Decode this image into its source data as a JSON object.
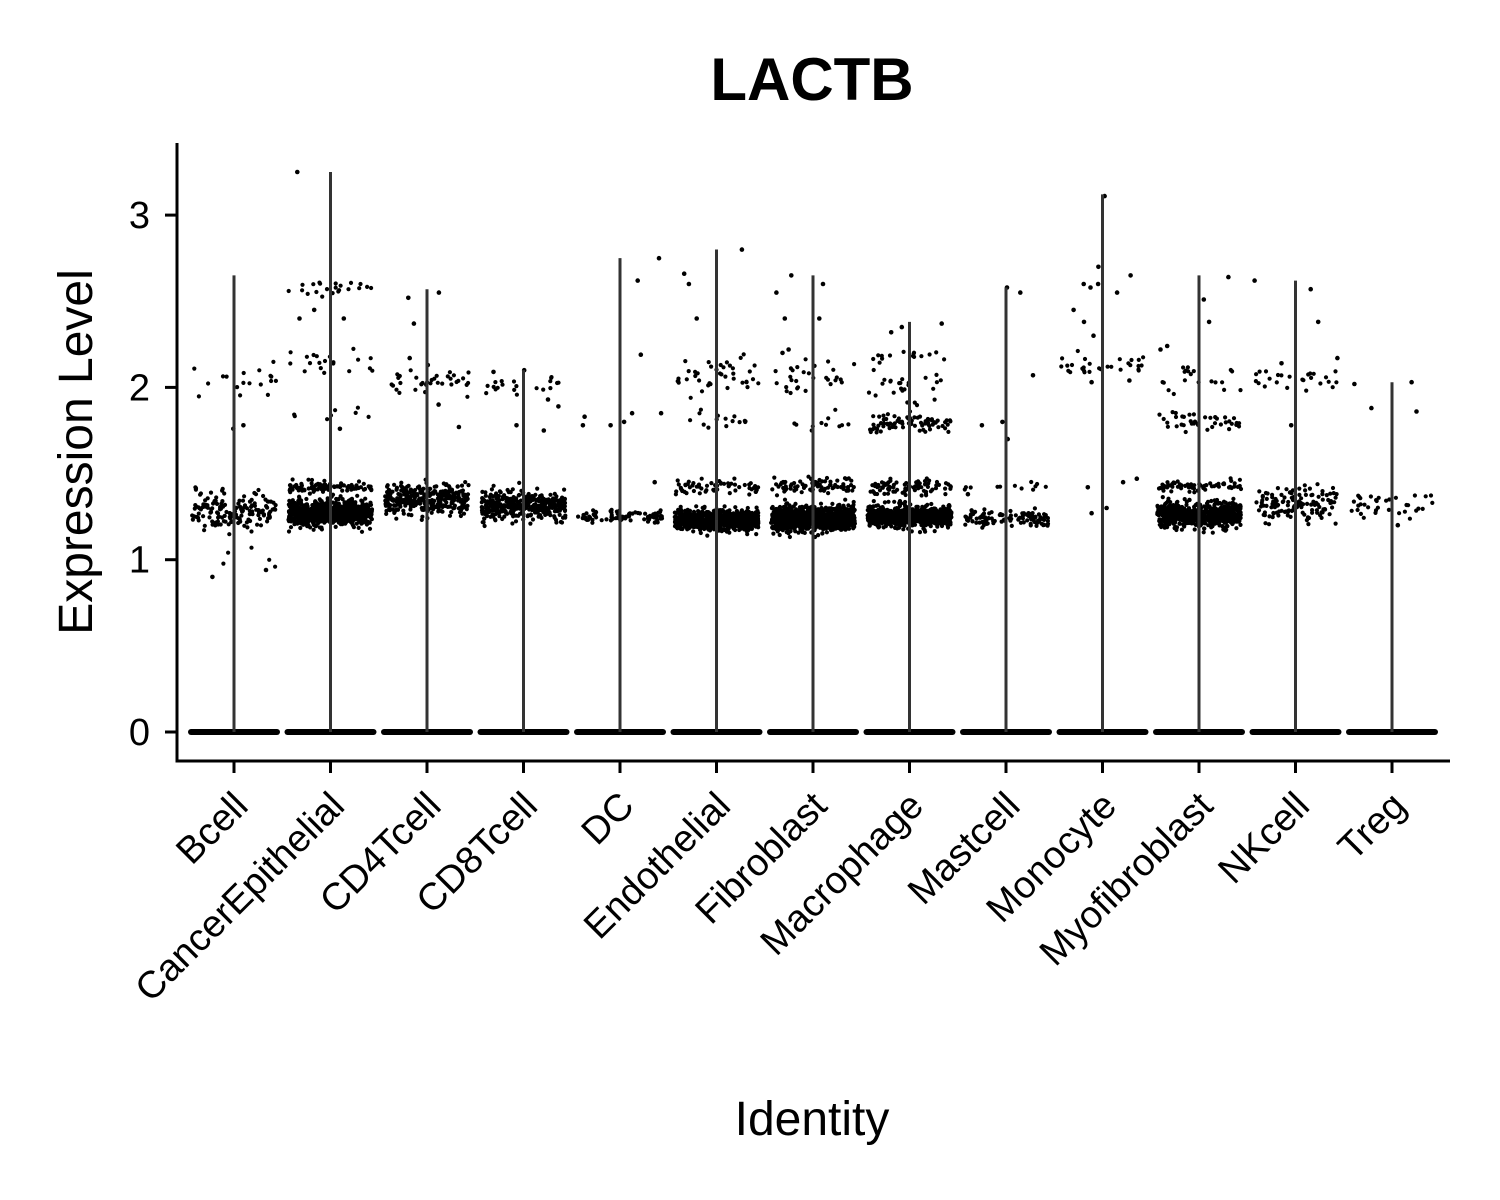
{
  "chart_data": {
    "type": "scatter",
    "subtype": "violin-jitter",
    "title": "LACTB",
    "xlabel": "Identity",
    "ylabel": "Expression Level",
    "ylim": [
      -0.15,
      3.42
    ],
    "yticks": [
      0,
      1,
      2,
      3
    ],
    "grid": false,
    "legend": "none",
    "colors": {
      "points": "#000000",
      "violin": "#333333",
      "axis": "#000000"
    },
    "categories": [
      "Bcell",
      "CancerEpithelial",
      "CD4Tcell",
      "CD8Tcell",
      "DC",
      "Endothelial",
      "Fibroblast",
      "Macrophage",
      "Mastcell",
      "Monocyte",
      "Myofibroblast",
      "NKcell",
      "Treg"
    ],
    "series": [
      {
        "category": "Bcell",
        "max": 2.65,
        "clusters": [
          {
            "center": 1.28,
            "spread": 0.09,
            "count": 150
          },
          {
            "center": 2.05,
            "spread": 0.12,
            "count": 18
          },
          {
            "center": 1.0,
            "spread": 0.06,
            "count": 5
          }
        ],
        "outliers": [
          0.9,
          0.94,
          1.76,
          1.78
        ]
      },
      {
        "category": "CancerEpithelial",
        "max": 3.25,
        "clusters": [
          {
            "center": 1.27,
            "spread": 0.06,
            "count": 800
          },
          {
            "center": 1.42,
            "spread": 0.03,
            "count": 90
          },
          {
            "center": 2.15,
            "spread": 0.06,
            "count": 20
          },
          {
            "center": 2.58,
            "spread": 0.04,
            "count": 22
          },
          {
            "center": 1.85,
            "spread": 0.06,
            "count": 8
          }
        ],
        "outliers": [
          2.4,
          2.4,
          3.25,
          1.76,
          2.45
        ]
      },
      {
        "category": "CD4Tcell",
        "max": 2.57,
        "clusters": [
          {
            "center": 1.35,
            "spread": 0.07,
            "count": 330
          },
          {
            "center": 2.03,
            "spread": 0.05,
            "count": 35
          }
        ],
        "outliers": [
          2.52,
          2.37,
          2.55,
          1.77,
          2.17,
          1.9,
          2.13
        ]
      },
      {
        "category": "CD8Tcell",
        "max": 2.1,
        "clusters": [
          {
            "center": 1.32,
            "spread": 0.07,
            "count": 380
          },
          {
            "center": 2.02,
            "spread": 0.04,
            "count": 20
          }
        ],
        "outliers": [
          1.75,
          1.89,
          1.93,
          2.09,
          2.1,
          1.78
        ]
      },
      {
        "category": "DC",
        "max": 2.75,
        "clusters": [
          {
            "center": 1.25,
            "spread": 0.03,
            "count": 90
          }
        ],
        "outliers": [
          1.8,
          1.85,
          1.78,
          1.78,
          2.19,
          2.62,
          2.75,
          1.45,
          1.83,
          1.85
        ]
      },
      {
        "category": "Endothelial",
        "max": 2.8,
        "clusters": [
          {
            "center": 1.23,
            "spread": 0.05,
            "count": 700
          },
          {
            "center": 1.42,
            "spread": 0.03,
            "count": 60
          },
          {
            "center": 2.05,
            "spread": 0.1,
            "count": 40
          },
          {
            "center": 1.8,
            "spread": 0.04,
            "count": 15
          }
        ],
        "outliers": [
          2.4,
          2.6,
          2.66,
          2.8
        ]
      },
      {
        "category": "Fibroblast",
        "max": 2.65,
        "clusters": [
          {
            "center": 1.24,
            "spread": 0.06,
            "count": 1000
          },
          {
            "center": 1.43,
            "spread": 0.04,
            "count": 80
          },
          {
            "center": 2.05,
            "spread": 0.1,
            "count": 30
          },
          {
            "center": 1.78,
            "spread": 0.03,
            "count": 10
          }
        ],
        "outliers": [
          2.55,
          2.6,
          2.65,
          2.4,
          2.4,
          2.22,
          2.2
        ]
      },
      {
        "category": "Macrophage",
        "max": 2.38,
        "clusters": [
          {
            "center": 1.25,
            "spread": 0.05,
            "count": 700
          },
          {
            "center": 1.42,
            "spread": 0.04,
            "count": 80
          },
          {
            "center": 1.79,
            "spread": 0.04,
            "count": 80
          },
          {
            "center": 2.0,
            "spread": 0.08,
            "count": 25
          },
          {
            "center": 2.18,
            "spread": 0.04,
            "count": 15
          }
        ],
        "outliers": [
          2.37,
          2.35,
          2.32
        ]
      },
      {
        "category": "Mastcell",
        "max": 2.58,
        "clusters": [
          {
            "center": 1.24,
            "spread": 0.04,
            "count": 110
          },
          {
            "center": 1.42,
            "spread": 0.02,
            "count": 12
          }
        ],
        "outliers": [
          1.7,
          2.07,
          1.8,
          1.78,
          2.55,
          2.58,
          1.38
        ]
      },
      {
        "category": "Monocyte",
        "max": 3.12,
        "clusters": [
          {
            "center": 2.13,
            "spread": 0.05,
            "count": 30
          }
        ],
        "outliers": [
          1.45,
          1.42,
          1.47,
          1.27,
          1.3,
          2.03,
          2.04,
          2.38,
          2.45,
          2.6,
          2.65,
          2.7,
          2.58,
          2.55,
          2.6,
          3.11,
          2.3
        ]
      },
      {
        "category": "Myofibroblast",
        "max": 2.65,
        "clusters": [
          {
            "center": 1.26,
            "spread": 0.06,
            "count": 650
          },
          {
            "center": 1.43,
            "spread": 0.03,
            "count": 60
          },
          {
            "center": 1.8,
            "spread": 0.05,
            "count": 40
          },
          {
            "center": 2.05,
            "spread": 0.1,
            "count": 20
          }
        ],
        "outliers": [
          2.64,
          2.51,
          2.38,
          2.22,
          2.24
        ]
      },
      {
        "category": "NKcell",
        "max": 2.62,
        "clusters": [
          {
            "center": 1.33,
            "spread": 0.08,
            "count": 130
          },
          {
            "center": 2.05,
            "spread": 0.05,
            "count": 25
          }
        ],
        "outliers": [
          2.38,
          2.57,
          2.62,
          1.78,
          2.17,
          2.14
        ]
      },
      {
        "category": "Treg",
        "max": 2.03,
        "clusters": [
          {
            "center": 1.32,
            "spread": 0.08,
            "count": 35
          }
        ],
        "outliers": [
          1.88,
          1.86,
          2.02,
          2.03,
          1.2
        ]
      }
    ]
  }
}
